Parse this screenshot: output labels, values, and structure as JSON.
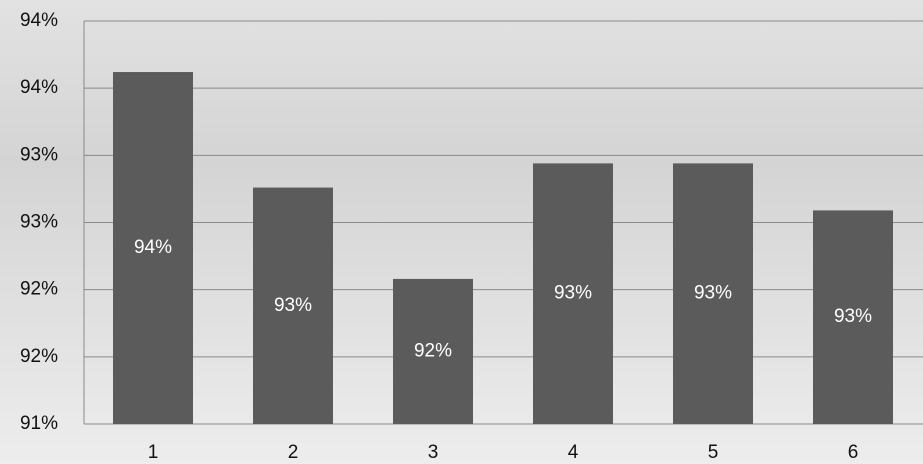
{
  "chart_data": {
    "type": "bar",
    "categories": [
      "1",
      "2",
      "3",
      "4",
      "5",
      "6"
    ],
    "values": [
      93.62,
      92.76,
      92.08,
      92.94,
      92.94,
      92.59
    ],
    "value_labels": [
      "94%",
      "93%",
      "92%",
      "93%",
      "93%",
      "93%"
    ],
    "color": "#5b5b5b",
    "ylim": [
      91,
      94
    ],
    "yticks": [
      {
        "value": 91,
        "label": "91%"
      },
      {
        "value": 91.5,
        "label": "92%"
      },
      {
        "value": 92,
        "label": "92%"
      },
      {
        "value": 92.5,
        "label": "93%"
      },
      {
        "value": 93,
        "label": "93%"
      },
      {
        "value": 93.5,
        "label": "94%"
      },
      {
        "value": 94,
        "label": "94%"
      }
    ],
    "grid": true
  }
}
